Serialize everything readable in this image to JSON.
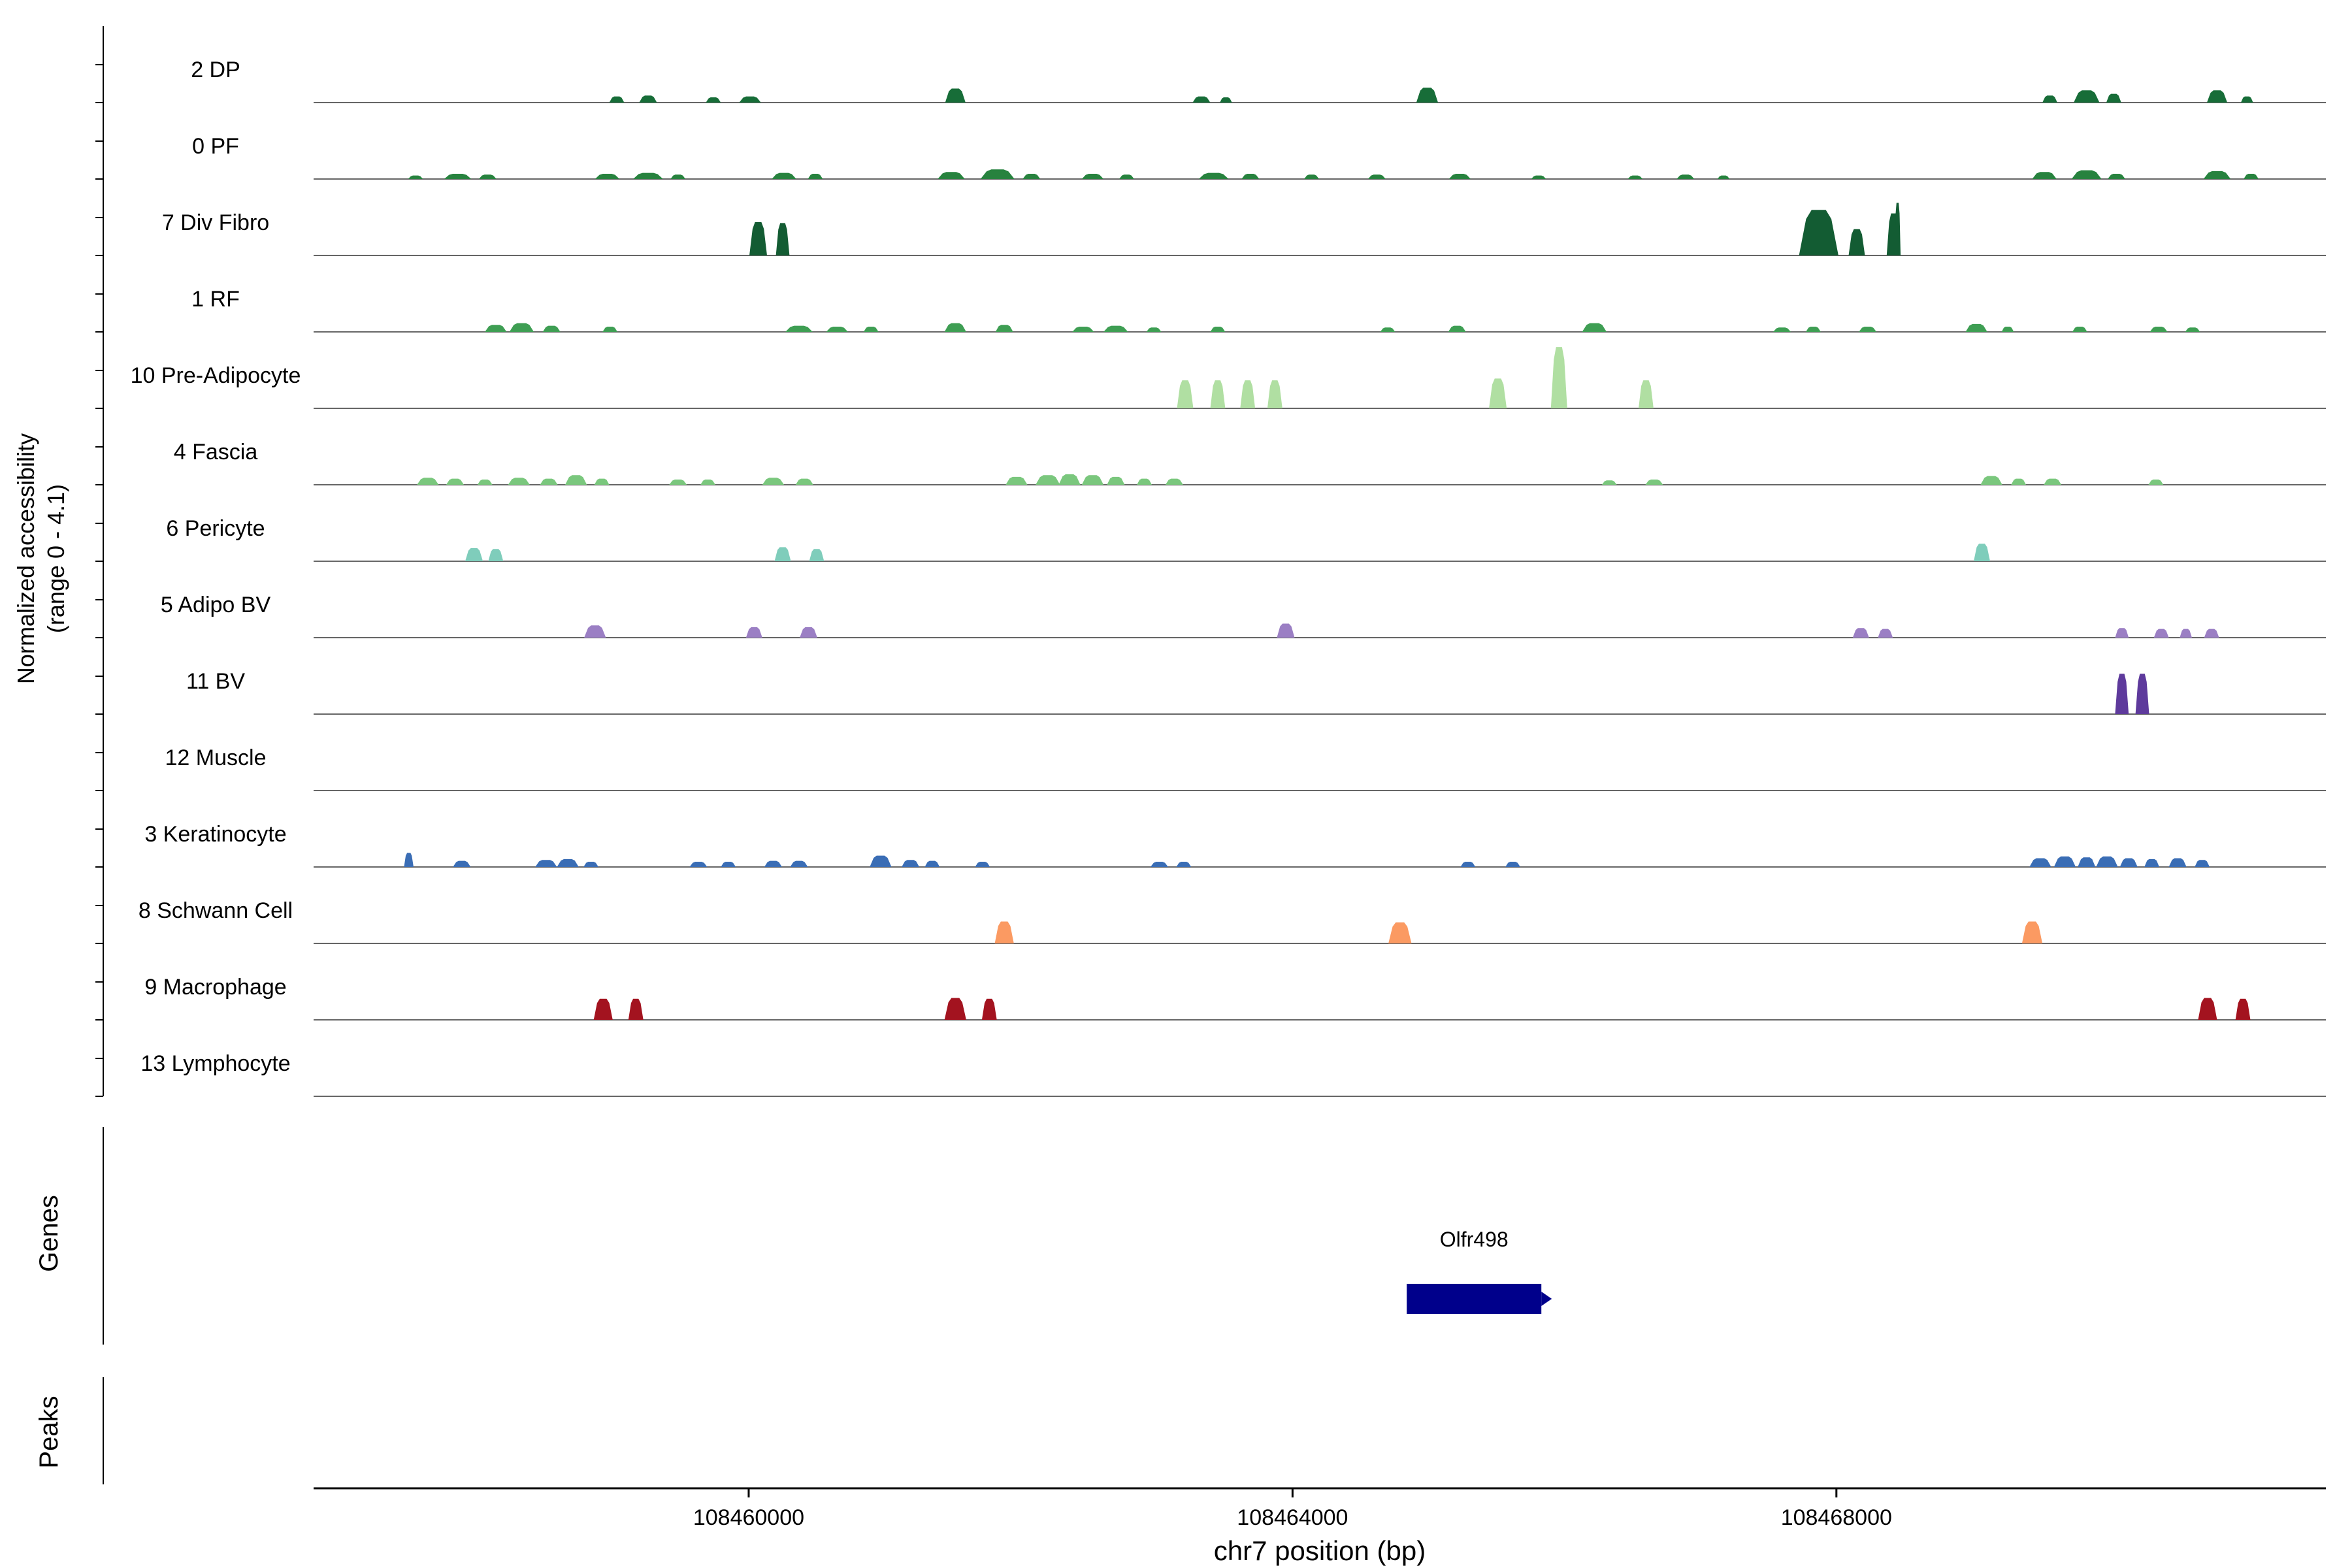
{
  "figure": {
    "y_axis_title_line1": "Normalized accessibility",
    "y_axis_title_line2": "(range 0 - 4.1)",
    "genes_section_label": "Genes",
    "peaks_section_label": "Peaks",
    "x_axis_title": "chr7 position (bp)"
  },
  "chart_data": {
    "type": "area",
    "title": "",
    "xlabel": "chr7 position (bp)",
    "ylabel": "Normalized accessibility (range 0 - 4.1)",
    "x_axis_range": [
      108456800,
      108471600
    ],
    "xticks": [
      108460000,
      108464000,
      108468000
    ],
    "xtick_labels": [
      "108460000",
      "108464000",
      "108468000"
    ],
    "track_ylim": [
      0,
      4.1
    ],
    "baseline_color": "#666666",
    "tracks": [
      {
        "label": "2 DP",
        "color": "#176d38",
        "peaks": [
          [
            108459030,
            110,
            0.35
          ],
          [
            108459260,
            130,
            0.4
          ],
          [
            108459740,
            110,
            0.3
          ],
          [
            108460010,
            160,
            0.35
          ],
          [
            108461520,
            150,
            0.8
          ],
          [
            108463330,
            130,
            0.35
          ],
          [
            108463510,
            90,
            0.3
          ],
          [
            108464990,
            160,
            0.85
          ],
          [
            108469570,
            110,
            0.4
          ],
          [
            108469840,
            190,
            0.7
          ],
          [
            108470040,
            110,
            0.5
          ],
          [
            108470800,
            150,
            0.7
          ],
          [
            108471020,
            90,
            0.35
          ]
        ]
      },
      {
        "label": "0 PF",
        "color": "#27823e",
        "peaks": [
          [
            108457550,
            110,
            0.2
          ],
          [
            108457860,
            200,
            0.3
          ],
          [
            108458080,
            130,
            0.25
          ],
          [
            108458960,
            180,
            0.3
          ],
          [
            108459260,
            220,
            0.35
          ],
          [
            108459480,
            110,
            0.25
          ],
          [
            108460260,
            180,
            0.35
          ],
          [
            108460490,
            110,
            0.3
          ],
          [
            108461490,
            200,
            0.4
          ],
          [
            108461830,
            250,
            0.55
          ],
          [
            108462080,
            130,
            0.3
          ],
          [
            108462530,
            160,
            0.3
          ],
          [
            108462780,
            110,
            0.25
          ],
          [
            108463420,
            220,
            0.35
          ],
          [
            108463690,
            130,
            0.3
          ],
          [
            108464140,
            110,
            0.25
          ],
          [
            108464620,
            130,
            0.25
          ],
          [
            108465230,
            160,
            0.3
          ],
          [
            108465810,
            110,
            0.2
          ],
          [
            108466520,
            110,
            0.2
          ],
          [
            108466890,
            130,
            0.25
          ],
          [
            108467170,
            90,
            0.2
          ],
          [
            108469530,
            180,
            0.4
          ],
          [
            108469840,
            220,
            0.5
          ],
          [
            108470060,
            130,
            0.3
          ],
          [
            108470800,
            200,
            0.45
          ],
          [
            108471050,
            110,
            0.3
          ]
        ]
      },
      {
        "label": "7 Div Fibro",
        "color": "#135c33",
        "peaks": [
          [
            108460070,
            130,
            1.9
          ],
          [
            108460250,
            100,
            1.85
          ],
          [
            108467870,
            290,
            2.6
          ],
          [
            108468150,
            120,
            1.5
          ],
          [
            108468420,
            100,
            2.4
          ],
          [
            108468450,
            45,
            3.0
          ]
        ]
      },
      {
        "label": "1 RF",
        "color": "#3e9e53",
        "peaks": [
          [
            108458140,
            160,
            0.4
          ],
          [
            108458330,
            180,
            0.5
          ],
          [
            108458550,
            130,
            0.35
          ],
          [
            108458980,
            110,
            0.3
          ],
          [
            108460370,
            200,
            0.35
          ],
          [
            108460650,
            160,
            0.3
          ],
          [
            108460900,
            110,
            0.3
          ],
          [
            108461520,
            160,
            0.5
          ],
          [
            108461880,
            130,
            0.4
          ],
          [
            108462460,
            160,
            0.3
          ],
          [
            108462700,
            180,
            0.35
          ],
          [
            108462980,
            110,
            0.25
          ],
          [
            108463450,
            110,
            0.3
          ],
          [
            108464700,
            110,
            0.25
          ],
          [
            108465210,
            130,
            0.35
          ],
          [
            108466220,
            180,
            0.5
          ],
          [
            108467600,
            130,
            0.25
          ],
          [
            108467830,
            110,
            0.3
          ],
          [
            108468230,
            130,
            0.3
          ],
          [
            108469030,
            160,
            0.45
          ],
          [
            108469260,
            90,
            0.3
          ],
          [
            108469790,
            110,
            0.3
          ],
          [
            108470370,
            130,
            0.3
          ],
          [
            108470620,
            110,
            0.25
          ]
        ]
      },
      {
        "label": "10 Pre-Adipocyte",
        "color": "#b0dfa2",
        "peaks": [
          [
            108463210,
            120,
            1.6
          ],
          [
            108463450,
            110,
            1.6
          ],
          [
            108463670,
            110,
            1.6
          ],
          [
            108463870,
            110,
            1.6
          ],
          [
            108465510,
            130,
            1.7
          ],
          [
            108465960,
            120,
            3.5
          ],
          [
            108466600,
            110,
            1.6
          ]
        ]
      },
      {
        "label": "4 Fascia",
        "color": "#7ac77d",
        "peaks": [
          [
            108457640,
            160,
            0.4
          ],
          [
            108457840,
            130,
            0.35
          ],
          [
            108458060,
            110,
            0.3
          ],
          [
            108458310,
            160,
            0.4
          ],
          [
            108458530,
            130,
            0.35
          ],
          [
            108458730,
            160,
            0.55
          ],
          [
            108458920,
            110,
            0.35
          ],
          [
            108459480,
            130,
            0.3
          ],
          [
            108459700,
            110,
            0.3
          ],
          [
            108460180,
            160,
            0.4
          ],
          [
            108460410,
            130,
            0.35
          ],
          [
            108461970,
            160,
            0.45
          ],
          [
            108462200,
            180,
            0.55
          ],
          [
            108462360,
            160,
            0.6
          ],
          [
            108462530,
            160,
            0.55
          ],
          [
            108462700,
            130,
            0.45
          ],
          [
            108462910,
            110,
            0.35
          ],
          [
            108463130,
            130,
            0.35
          ],
          [
            108466330,
            110,
            0.25
          ],
          [
            108466660,
            130,
            0.3
          ],
          [
            108469140,
            160,
            0.5
          ],
          [
            108469340,
            110,
            0.35
          ],
          [
            108469590,
            130,
            0.35
          ],
          [
            108470350,
            110,
            0.3
          ]
        ]
      },
      {
        "label": "6 Pericyte",
        "color": "#7fcdbb",
        "peaks": [
          [
            108457980,
            130,
            0.75
          ],
          [
            108458140,
            110,
            0.7
          ],
          [
            108460250,
            120,
            0.8
          ],
          [
            108460500,
            110,
            0.7
          ],
          [
            108469070,
            120,
            1.0
          ]
        ]
      },
      {
        "label": "5 Adipo BV",
        "color": "#9b7fc4",
        "peaks": [
          [
            108458870,
            160,
            0.7
          ],
          [
            108460040,
            120,
            0.6
          ],
          [
            108460440,
            130,
            0.6
          ],
          [
            108463950,
            130,
            0.8
          ],
          [
            108468180,
            120,
            0.55
          ],
          [
            108468360,
            110,
            0.5
          ],
          [
            108470100,
            100,
            0.55
          ],
          [
            108470390,
            110,
            0.5
          ],
          [
            108470570,
            90,
            0.5
          ],
          [
            108470760,
            110,
            0.5
          ]
        ]
      },
      {
        "label": "11 BV",
        "color": "#5e3a9c",
        "peaks": [
          [
            108470100,
            100,
            2.3
          ],
          [
            108470250,
            100,
            2.3
          ]
        ]
      },
      {
        "label": "12 Muscle",
        "color": "#bbbbbb",
        "peaks": []
      },
      {
        "label": "3 Keratinocyte",
        "color": "#3a6db5",
        "peaks": [
          [
            108457500,
            70,
            0.8
          ],
          [
            108457890,
            130,
            0.35
          ],
          [
            108458510,
            160,
            0.4
          ],
          [
            108458670,
            160,
            0.45
          ],
          [
            108458840,
            110,
            0.3
          ],
          [
            108459630,
            130,
            0.3
          ],
          [
            108459850,
            110,
            0.3
          ],
          [
            108460180,
            130,
            0.35
          ],
          [
            108460370,
            130,
            0.35
          ],
          [
            108460970,
            160,
            0.65
          ],
          [
            108461190,
            130,
            0.4
          ],
          [
            108461350,
            110,
            0.35
          ],
          [
            108461720,
            110,
            0.3
          ],
          [
            108463020,
            130,
            0.3
          ],
          [
            108463200,
            110,
            0.3
          ],
          [
            108465290,
            110,
            0.3
          ],
          [
            108465620,
            110,
            0.3
          ],
          [
            108469500,
            160,
            0.5
          ],
          [
            108469680,
            160,
            0.6
          ],
          [
            108469840,
            130,
            0.55
          ],
          [
            108469990,
            160,
            0.6
          ],
          [
            108470150,
            130,
            0.5
          ],
          [
            108470320,
            110,
            0.45
          ],
          [
            108470510,
            130,
            0.5
          ],
          [
            108470690,
            110,
            0.4
          ]
        ]
      },
      {
        "label": "8 Schwann Cell",
        "color": "#fb9a62",
        "peaks": [
          [
            108461880,
            140,
            1.25
          ],
          [
            108464790,
            170,
            1.2
          ],
          [
            108469440,
            150,
            1.25
          ]
        ]
      },
      {
        "label": "9 Macrophage",
        "color": "#a3131f",
        "peaks": [
          [
            108458930,
            140,
            1.2
          ],
          [
            108459170,
            110,
            1.2
          ],
          [
            108461520,
            160,
            1.25
          ],
          [
            108461770,
            110,
            1.2
          ],
          [
            108470730,
            140,
            1.25
          ],
          [
            108470990,
            110,
            1.2
          ]
        ]
      },
      {
        "label": "13 Lymphocyte",
        "color": "#bbbbbb",
        "peaks": []
      }
    ],
    "genes": [
      {
        "name": "Olfr498",
        "start": 108464840,
        "end": 108465830,
        "color": "#00008b"
      }
    ],
    "peaks_track": []
  }
}
